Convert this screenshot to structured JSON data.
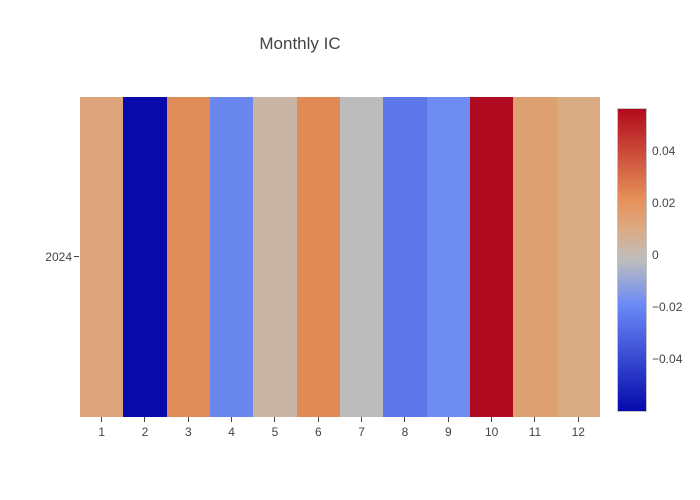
{
  "title": "Monthly IC",
  "colors": {
    "background": "#ffffff",
    "title_text": "#444444",
    "tick_text": "#444444",
    "colorbar_border": "#c4c4c4"
  },
  "chart_data": {
    "type": "heatmap",
    "title": "Monthly IC",
    "xlabel": "",
    "ylabel": "",
    "x_labels": [
      "1",
      "2",
      "3",
      "4",
      "5",
      "6",
      "7",
      "8",
      "9",
      "10",
      "11",
      "12"
    ],
    "y_labels": [
      "2024"
    ],
    "z": [
      [
        0.012,
        -0.06,
        0.022,
        -0.019,
        0.003,
        0.021,
        -0.002,
        -0.025,
        -0.017,
        0.057,
        0.015,
        0.01
      ]
    ],
    "zmin": -0.0604,
    "zmax": 0.0565,
    "grid": false,
    "legend_position": "right-colorbar",
    "cell_colors": [
      [
        "#dca57c",
        "#0a0aaa",
        "#e08c58",
        "#6a87ee",
        "#c8b5a4",
        "#e08a55",
        "#bcbcbc",
        "#5d77e8",
        "#6e8cf2",
        "#b00b20",
        "#dda071",
        "#d9ab82"
      ]
    ],
    "colorbar": {
      "colorscale_name": "RdBu",
      "tick_values": [
        0.04,
        0.02,
        0,
        -0.02,
        -0.04
      ],
      "tick_labels": [
        "0.04",
        "0.02",
        "0",
        "−0.02",
        "−0.04"
      ],
      "gradient_stops": [
        {
          "pos": 0.0,
          "color": "#050aac"
        },
        {
          "pos": 0.35,
          "color": "#6a89f7"
        },
        {
          "pos": 0.5,
          "color": "#bebebe"
        },
        {
          "pos": 0.6,
          "color": "#dcaa84"
        },
        {
          "pos": 0.7,
          "color": "#e6915a"
        },
        {
          "pos": 1.0,
          "color": "#b20a1c"
        }
      ]
    }
  }
}
